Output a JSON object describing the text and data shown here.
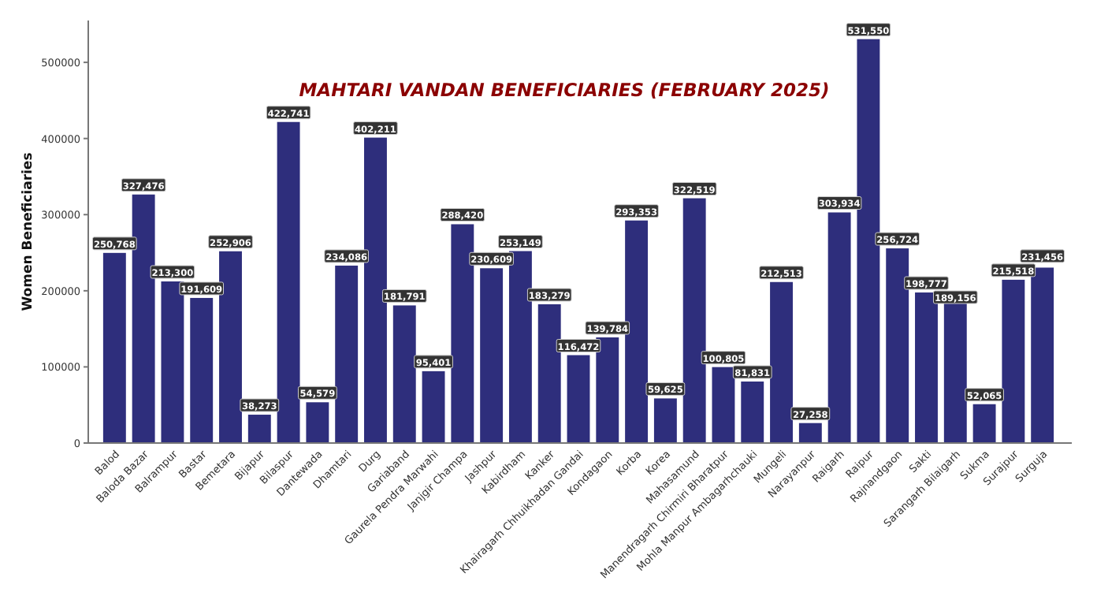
{
  "chart_data": {
    "type": "bar",
    "title": "MAHTARI VANDAN BENEFICIARIES (FEBRUARY 2025)",
    "ylabel": "Women Beneficiaries",
    "categories": [
      "Balod",
      "Baloda Bazar",
      "Balrampur",
      "Bastar",
      "Bemetara",
      "Bijapur",
      "Bilaspur",
      "Dantewada",
      "Dhamtari",
      "Durg",
      "Gariaband",
      "Gaurela Pendra Marwahi",
      "Janjgir Champa",
      "Jashpur",
      "Kabirdham",
      "Kanker",
      "Khairagarh Chhuikhadan Gandai",
      "Kondagaon",
      "Korba",
      "Korea",
      "Mahasamund",
      "Manendragarh Chirmiri Bharatpur",
      "Mohla Manpur Ambagarhchauki",
      "Mungeli",
      "Narayanpur",
      "Raigarh",
      "Raipur",
      "Rajnandgaon",
      "Sakti",
      "Sarangarh Bilaigarh",
      "Sukma",
      "Surajpur",
      "Surguja"
    ],
    "values": [
      250768,
      327476,
      213300,
      191609,
      252906,
      38273,
      422741,
      54579,
      234086,
      402211,
      181791,
      95401,
      288420,
      230609,
      253149,
      183279,
      116472,
      139784,
      293353,
      59625,
      322519,
      100805,
      81831,
      212513,
      27258,
      303934,
      531550,
      256724,
      198777,
      189156,
      52065,
      215518,
      231456
    ],
    "value_labels": [
      "250,768",
      "327,476",
      "213,300",
      "191,609",
      "252,906",
      "38,273",
      "422,741",
      "54,579",
      "234,086",
      "402,211",
      "181,791",
      "95,401",
      "288,420",
      "230,609",
      "253,149",
      "183,279",
      "116,472",
      "139,784",
      "293,353",
      "59,625",
      "322,519",
      "100,805",
      "81,831",
      "212,513",
      "27,258",
      "303,934",
      "531,550",
      "256,724",
      "198,777",
      "189,156",
      "52,065",
      "215,518",
      "231,456"
    ],
    "color": "#2e2e7c",
    "ylim": [
      0,
      555000
    ],
    "yticks": [
      0,
      100000,
      200000,
      300000,
      400000,
      500000
    ],
    "grid": false
  }
}
